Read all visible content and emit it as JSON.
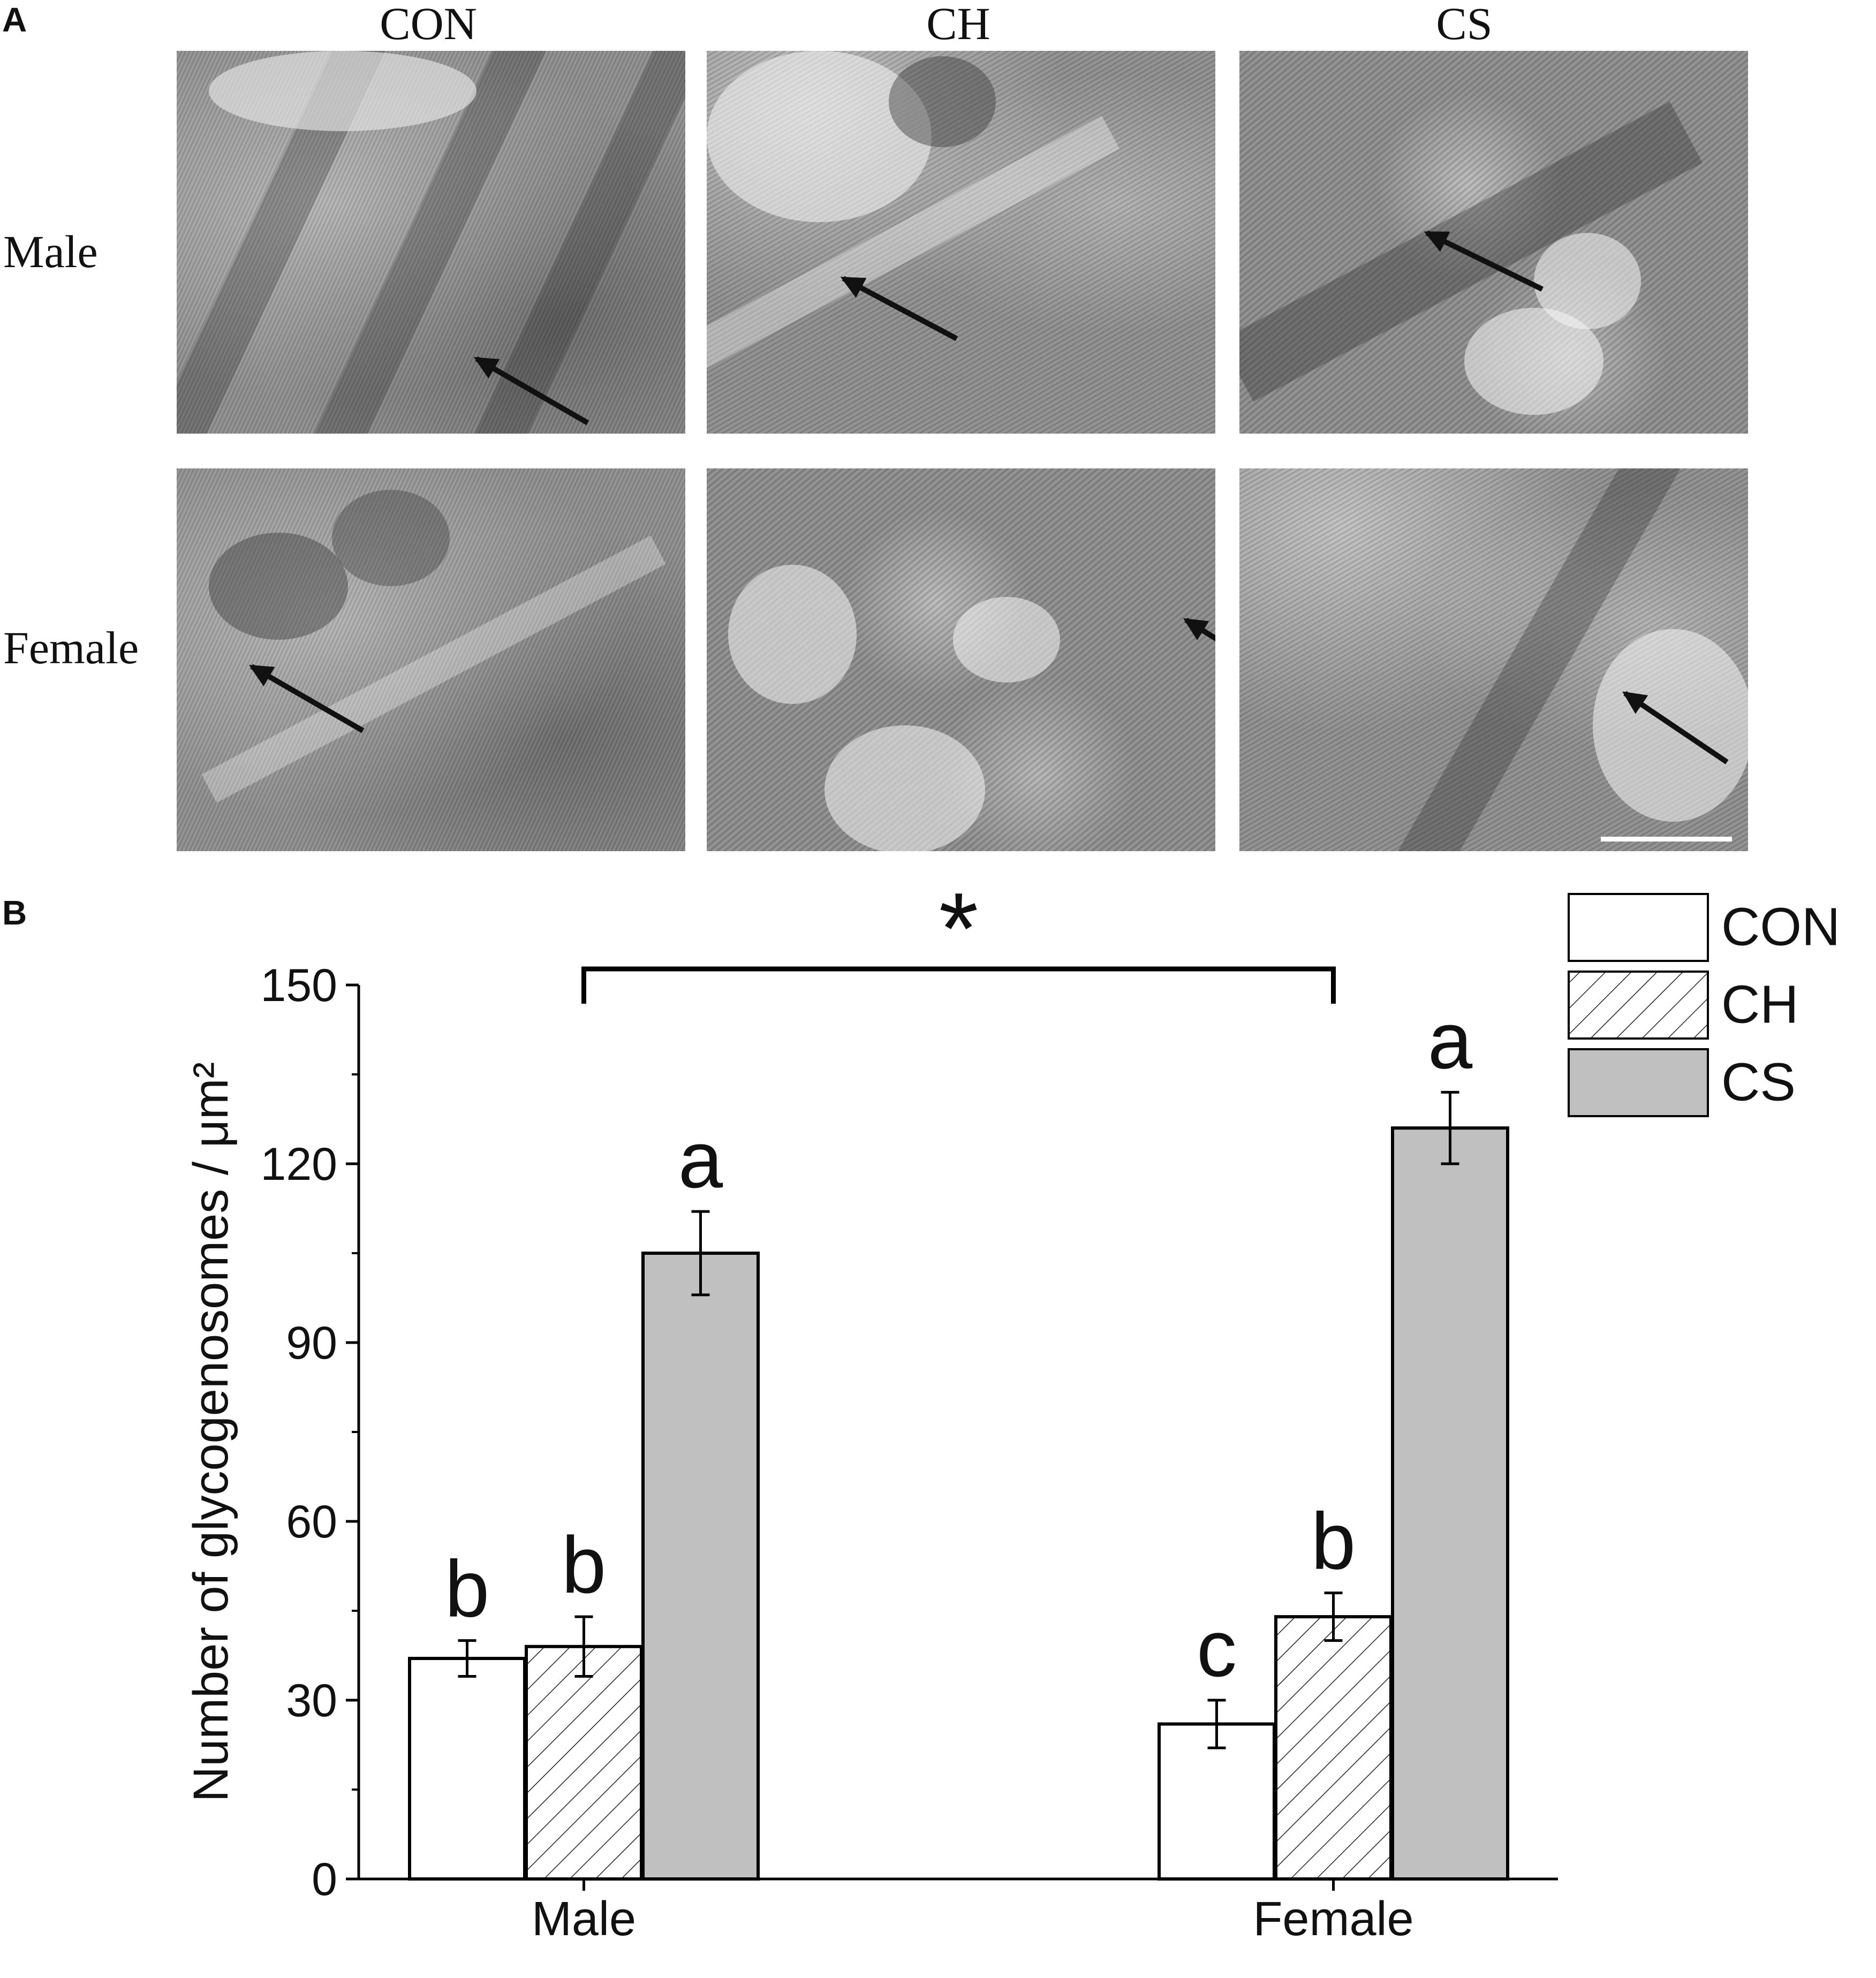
{
  "panel_a": {
    "letter": "A",
    "columns": [
      "CON",
      "CH",
      "CS"
    ],
    "rows": [
      "Male",
      "Female"
    ]
  },
  "panel_b": {
    "letter": "B"
  },
  "chart_data": {
    "type": "bar",
    "title": "",
    "xlabel": "",
    "ylabel": "Number of glycogenosomes / μm²",
    "ylim": [
      0,
      150
    ],
    "yticks": [
      0,
      30,
      60,
      90,
      120,
      150
    ],
    "categories": [
      "Male",
      "Female"
    ],
    "series": [
      {
        "name": "CON",
        "values": [
          37,
          26
        ],
        "errors": [
          3,
          4
        ],
        "letters": [
          "b",
          "c"
        ],
        "fill": "#ffffff",
        "pattern": "none"
      },
      {
        "name": "CH",
        "values": [
          39,
          44
        ],
        "errors": [
          5,
          4
        ],
        "letters": [
          "b",
          "b"
        ],
        "fill": "#ffffff",
        "pattern": "hatch"
      },
      {
        "name": "CS",
        "values": [
          105,
          126
        ],
        "errors": [
          7,
          6
        ],
        "letters": [
          "a",
          "a"
        ],
        "fill": "#c0c0c0",
        "pattern": "none"
      }
    ],
    "significance": {
      "between": [
        "Male",
        "Female"
      ],
      "label": "*"
    },
    "legend": {
      "position": "top-right",
      "entries": [
        "CON",
        "CH",
        "CS"
      ]
    },
    "grid": false
  }
}
